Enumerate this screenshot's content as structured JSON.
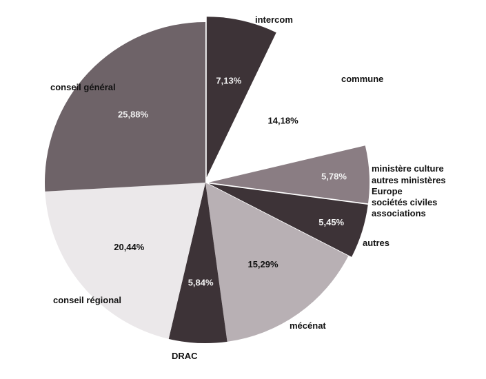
{
  "chart_data": {
    "type": "pie",
    "title": "",
    "slices": [
      {
        "label": "intercom",
        "value": 7.13,
        "value_label": "7,13%",
        "color": "#3d3337"
      },
      {
        "label": "commune",
        "value": 14.18,
        "value_label": "14,18%",
        "color": "#ffffff"
      },
      {
        "label": "ministère culture\nautres ministères\nEurope\nsociétés civiles\nassociations",
        "value": 5.78,
        "value_label": "5,78%",
        "color": "#8a7d83"
      },
      {
        "label": "autres",
        "value": 5.45,
        "value_label": "5,45%",
        "color": "#3d3337"
      },
      {
        "label": "mécénat",
        "value": 15.29,
        "value_label": "15,29%",
        "color": "#b8b0b4"
      },
      {
        "label": "DRAC",
        "value": 5.84,
        "value_label": "5,84%",
        "color": "#3d3337"
      },
      {
        "label": "conseil régional",
        "value": 20.44,
        "value_label": "20,44%",
        "color": "#ebe8ea"
      },
      {
        "label": "conseil général",
        "value": 25.88,
        "value_label": "25,88%",
        "color": "#6e6368"
      }
    ],
    "start_angle_deg": 0,
    "direction": "clockwise"
  }
}
